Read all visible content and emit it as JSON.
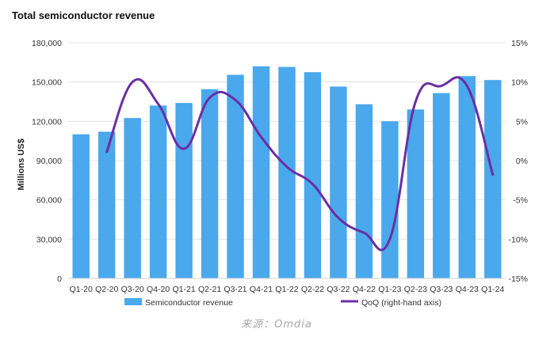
{
  "chart_data": {
    "type": "bar",
    "title": "Total semiconductor revenue",
    "ylabel": "Millions US$",
    "ylim": [
      0,
      180000
    ],
    "y2lim": [
      -15,
      15
    ],
    "yticks": [
      "0",
      "30,000",
      "60,000",
      "90,000",
      "120,000",
      "150,000",
      "180,000"
    ],
    "y2ticks": [
      "-15%",
      "-10%",
      "-5%",
      "0%",
      "5%",
      "10%",
      "15%"
    ],
    "categories": [
      "Q1-20",
      "Q2-20",
      "Q3-20",
      "Q4-20",
      "Q1-21",
      "Q2-21",
      "Q3-21",
      "Q4-21",
      "Q1-22",
      "Q2-22",
      "Q3-22",
      "Q4-22",
      "Q1-23",
      "Q2-23",
      "Q3-23",
      "Q4-23",
      "Q1-24"
    ],
    "series": [
      {
        "name": "Semiconductor revenue",
        "type": "bar",
        "axis": "left",
        "color": "#4aa8ec",
        "values": [
          110000,
          112000,
          122500,
          132000,
          134000,
          144500,
          155500,
          162000,
          161500,
          157500,
          146500,
          133000,
          120000,
          129000,
          141500,
          154500,
          151500
        ]
      },
      {
        "name": "QoQ (right-hand axis)",
        "type": "line",
        "axis": "right",
        "color": "#6a2fa3",
        "values": [
          null,
          1.1,
          10.0,
          7.2,
          1.5,
          8.0,
          7.7,
          3.0,
          -0.8,
          -3.0,
          -7.3,
          -9.2,
          -10.0,
          7.5,
          9.5,
          9.5,
          -1.8
        ]
      }
    ],
    "legend_position": "bottom",
    "grid": true
  },
  "source_text": "来源：Omdia"
}
